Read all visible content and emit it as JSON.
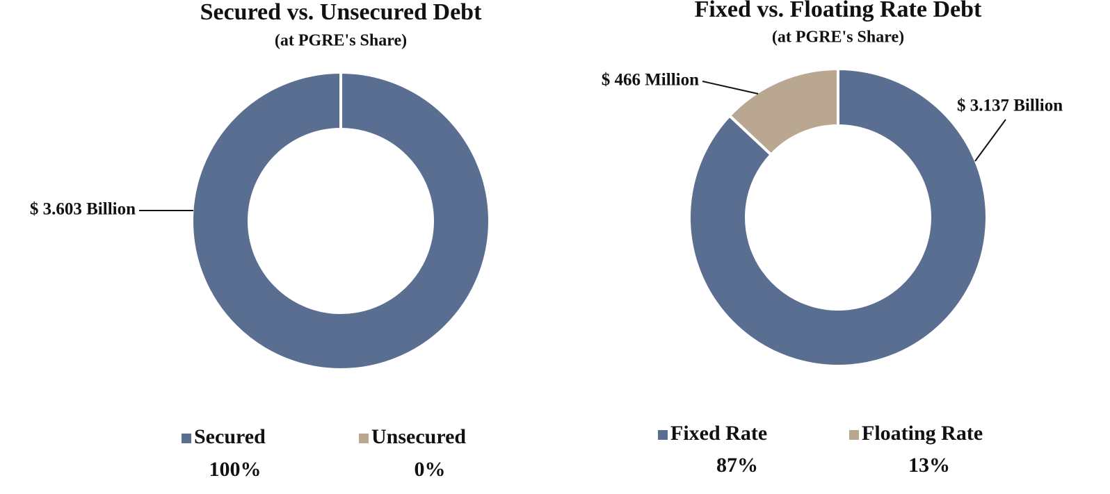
{
  "chart_data": [
    {
      "type": "pie",
      "title": "Secured vs. Unsecured Debt",
      "subtitle": "(at PGRE's Share)",
      "categories": [
        "Secured",
        "Unsecured"
      ],
      "values": [
        100,
        0
      ],
      "value_labels": [
        "100%",
        "0%"
      ],
      "slice_labels": [
        "$ 3.603 Billion",
        null
      ],
      "colors": [
        "#5a6e91",
        "#baa792"
      ]
    },
    {
      "type": "pie",
      "title": "Fixed vs. Floating Rate Debt",
      "subtitle": "(at PGRE's Share)",
      "categories": [
        "Fixed Rate",
        "Floating Rate"
      ],
      "values": [
        87,
        13
      ],
      "value_labels": [
        "87%",
        "13%"
      ],
      "slice_labels": [
        "$ 3.137 Billion",
        "$ 466 Million"
      ],
      "colors": [
        "#5a6e91",
        "#baa792"
      ]
    }
  ]
}
